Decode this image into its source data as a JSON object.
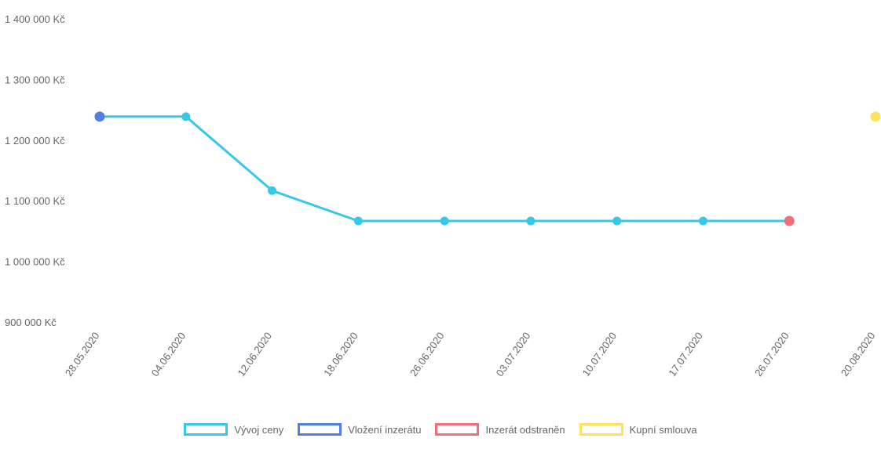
{
  "chart_data": {
    "type": "line",
    "title": "",
    "xlabel": "",
    "ylabel": "",
    "ylim": [
      900000,
      1400000
    ],
    "ytick_values": [
      900000,
      1000000,
      1100000,
      1200000,
      1300000,
      1400000
    ],
    "ytick_labels": [
      "900 000 Kč",
      "1 000 000 Kč",
      "1 100 000 Kč",
      "1 200 000 Kč",
      "1 300 000 Kč",
      "1 400 000 Kč"
    ],
    "categories": [
      "28.05.2020",
      "04.06.2020",
      "12.06.2020",
      "18.06.2020",
      "26.06.2020",
      "03.07.2020",
      "10.07.2020",
      "17.07.2020",
      "26.07.2020",
      "20.08.2020"
    ],
    "series": [
      {
        "name": "Vývoj ceny",
        "color": "#36c8e6",
        "values": [
          1240000,
          1240000,
          1118000,
          1068000,
          1068000,
          1068000,
          1068000,
          1068000,
          1068000,
          null
        ]
      },
      {
        "name": "Vložení inzerátu",
        "color": "#4f7fe0",
        "values": [
          1240000,
          null,
          null,
          null,
          null,
          null,
          null,
          null,
          null,
          null
        ]
      },
      {
        "name": "Inzerát odstraněn",
        "color": "#ef6f7f",
        "values": [
          null,
          null,
          null,
          null,
          null,
          null,
          null,
          null,
          1068000,
          null
        ]
      },
      {
        "name": "Kupní smlouva",
        "color": "#fde25e",
        "values": [
          null,
          null,
          null,
          null,
          null,
          null,
          null,
          null,
          null,
          1240000
        ]
      }
    ],
    "grid": false,
    "legend_position": "bottom"
  }
}
